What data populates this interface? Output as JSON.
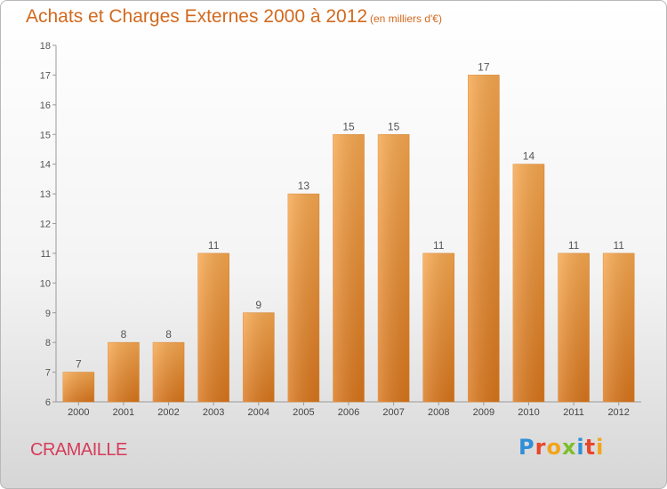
{
  "header": {
    "title": "Achats et Charges Externes 2000 à 2012",
    "subtitle": "(en milliers d'€)"
  },
  "footer": {
    "commune": "CRAMAILLE",
    "brand": "Proxiti",
    "brand_colors": [
      "#2f8fd8",
      "#e8462a",
      "#f2a51a",
      "#7cbf2a",
      "#2f8fd8",
      "#e8462a",
      "#f2a51a"
    ]
  },
  "colors": {
    "bar_top": "#f7a84f",
    "bar_bottom": "#d9761c",
    "text": "#d2691e"
  },
  "chart_data": {
    "type": "bar",
    "title": "Achats et Charges Externes 2000 à 2012",
    "subtitle": "(en milliers d'€)",
    "categories": [
      "2000",
      "2001",
      "2002",
      "2003",
      "2004",
      "2005",
      "2006",
      "2007",
      "2008",
      "2009",
      "2010",
      "2011",
      "2012"
    ],
    "values": [
      7,
      8,
      8,
      11,
      9,
      13,
      15,
      15,
      11,
      17,
      14,
      11,
      11
    ],
    "ylim": [
      6,
      18
    ],
    "yticks": [
      6,
      7,
      8,
      9,
      10,
      11,
      12,
      13,
      14,
      15,
      16,
      17,
      18
    ],
    "grid": false,
    "data_labels": true
  }
}
